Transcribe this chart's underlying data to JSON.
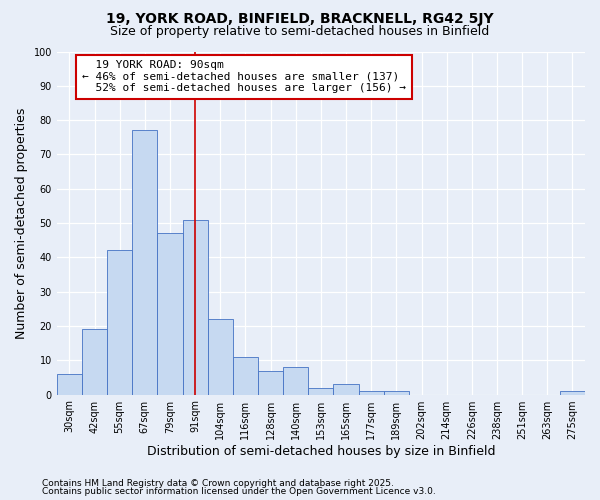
{
  "title1": "19, YORK ROAD, BINFIELD, BRACKNELL, RG42 5JY",
  "title2": "Size of property relative to semi-detached houses in Binfield",
  "xlabel": "Distribution of semi-detached houses by size in Binfield",
  "ylabel": "Number of semi-detached properties",
  "bin_labels": [
    "30sqm",
    "42sqm",
    "55sqm",
    "67sqm",
    "79sqm",
    "91sqm",
    "104sqm",
    "116sqm",
    "128sqm",
    "140sqm",
    "153sqm",
    "165sqm",
    "177sqm",
    "189sqm",
    "202sqm",
    "214sqm",
    "226sqm",
    "238sqm",
    "251sqm",
    "263sqm",
    "275sqm"
  ],
  "bar_heights": [
    6,
    19,
    42,
    77,
    47,
    51,
    22,
    11,
    7,
    8,
    2,
    3,
    1,
    1,
    0,
    0,
    0,
    0,
    0,
    0,
    1
  ],
  "bar_color": "#c6d9f1",
  "bar_edge_color": "#4472c4",
  "property_label": "19 YORK ROAD: 90sqm",
  "pct_smaller": 46,
  "pct_larger": 52,
  "n_smaller": 137,
  "n_larger": 156,
  "vline_x_index": 5,
  "annotation_box_color": "#ffffff",
  "annotation_box_edge": "#cc0000",
  "vline_color": "#cc0000",
  "ylim": [
    0,
    100
  ],
  "yticks": [
    0,
    10,
    20,
    30,
    40,
    50,
    60,
    70,
    80,
    90,
    100
  ],
  "footnote1": "Contains HM Land Registry data © Crown copyright and database right 2025.",
  "footnote2": "Contains public sector information licensed under the Open Government Licence v3.0.",
  "bg_color": "#e8eef8",
  "title1_fontsize": 10,
  "title2_fontsize": 9,
  "axis_label_fontsize": 9,
  "tick_fontsize": 7,
  "annotation_fontsize": 8,
  "footnote_fontsize": 6.5
}
